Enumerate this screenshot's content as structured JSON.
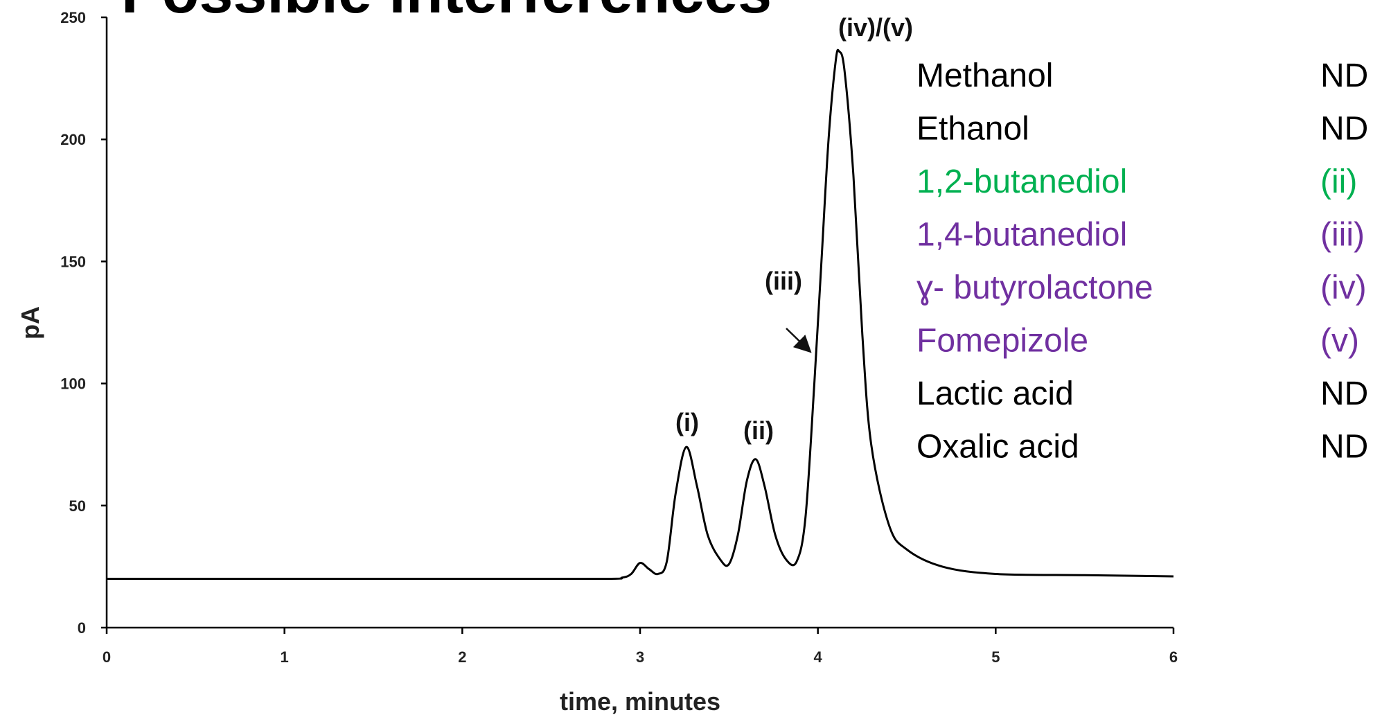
{
  "title": "Possible interferences",
  "chart_data": {
    "type": "line",
    "x": [
      0,
      1,
      2,
      2.8,
      2.9,
      2.95,
      3.0,
      3.05,
      3.1,
      3.15,
      3.2,
      3.26,
      3.32,
      3.38,
      3.45,
      3.5,
      3.55,
      3.6,
      3.65,
      3.7,
      3.76,
      3.82,
      3.88,
      3.93,
      3.98,
      4.02,
      4.06,
      4.1,
      4.12,
      4.15,
      4.2,
      4.25,
      4.3,
      4.4,
      4.5,
      4.7,
      5,
      5.5,
      6
    ],
    "values": [
      20,
      20,
      20,
      20,
      20.5,
      22,
      26.5,
      24,
      22,
      27,
      55,
      74,
      58,
      38,
      28,
      26,
      38,
      60,
      69,
      58,
      38,
      28,
      27,
      45,
      100,
      150,
      200,
      232,
      236,
      228,
      185,
      120,
      75,
      42,
      32,
      25,
      22,
      21.5,
      21
    ],
    "color": "#000000",
    "xlim": [
      0,
      6
    ],
    "xticks": [
      0,
      1,
      2,
      3,
      4,
      5,
      6
    ],
    "ylim": [
      0,
      250
    ],
    "yticks": [
      0,
      50,
      100,
      150,
      200,
      250
    ],
    "xlabel": "time, minutes",
    "ylabel": "pA",
    "annotations": [
      "(i)",
      "(ii)",
      "(iii)",
      "(iv)/(v)"
    ]
  },
  "compounds": [
    {
      "name": "Methanol",
      "result": "ND",
      "color": "#000000"
    },
    {
      "name": "Ethanol",
      "result": "ND",
      "color": "#000000"
    },
    {
      "name": "1,2-butanediol",
      "result": "(ii)",
      "color": "#00b050"
    },
    {
      "name": "1,4-butanediol",
      "result": "(iii)",
      "color": "#7030a0"
    },
    {
      "name": "ɣ- butyrolactone",
      "result": "(iv)",
      "color": "#7030a0"
    },
    {
      "name": "Fomepizole",
      "result": "(v)",
      "color": "#7030a0"
    },
    {
      "name": "Lactic acid",
      "result": "ND",
      "color": "#000000"
    },
    {
      "name": "Oxalic acid",
      "result": "ND",
      "color": "#000000"
    }
  ]
}
